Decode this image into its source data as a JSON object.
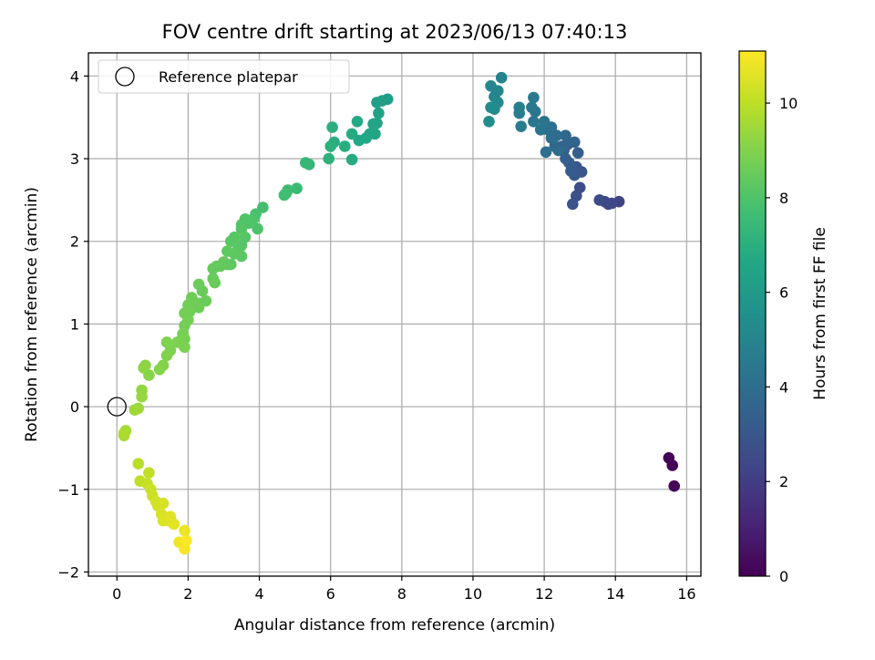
{
  "chart_data": {
    "type": "scatter",
    "title": "FOV centre drift starting at 2023/06/13 07:40:13",
    "xlabel": "Angular distance from reference (arcmin)",
    "ylabel": "Rotation from reference (arcmin)",
    "xlim": [
      -0.8,
      16.4
    ],
    "ylim": [
      -2.05,
      4.28
    ],
    "xticks": [
      0,
      2,
      4,
      6,
      8,
      10,
      12,
      14,
      16
    ],
    "yticks": [
      -2,
      -1,
      0,
      1,
      2,
      3,
      4
    ],
    "grid": true,
    "legend": {
      "position": "top-left",
      "entries": [
        "Reference platepar"
      ]
    },
    "reference_point": {
      "x": 0,
      "y": 0
    },
    "colorbar": {
      "label": "Hours from first FF file",
      "colormap": "viridis",
      "range": [
        0,
        11.1
      ],
      "ticks": [
        0,
        2,
        4,
        6,
        8,
        10
      ]
    },
    "points": [
      [
        15.5,
        -0.62,
        0.05
      ],
      [
        15.6,
        -0.71,
        0.1
      ],
      [
        15.65,
        -0.96,
        0.15
      ],
      [
        14.1,
        2.48,
        2.2
      ],
      [
        13.8,
        2.45,
        2.3
      ],
      [
        13.9,
        2.46,
        2.35
      ],
      [
        13.7,
        2.48,
        2.4
      ],
      [
        13.55,
        2.5,
        2.5
      ],
      [
        13.0,
        2.65,
        2.6
      ],
      [
        12.9,
        2.55,
        2.7
      ],
      [
        12.8,
        2.45,
        2.8
      ],
      [
        13.05,
        2.84,
        2.9
      ],
      [
        12.9,
        2.9,
        3.0
      ],
      [
        12.85,
        2.8,
        3.1
      ],
      [
        12.75,
        2.85,
        3.15
      ],
      [
        12.7,
        2.95,
        3.2
      ],
      [
        12.95,
        3.07,
        3.3
      ],
      [
        12.6,
        3.0,
        3.35
      ],
      [
        12.55,
        3.1,
        3.4
      ],
      [
        12.85,
        3.2,
        3.5
      ],
      [
        12.65,
        3.17,
        3.55
      ],
      [
        12.5,
        3.15,
        3.6
      ],
      [
        12.6,
        3.28,
        3.7
      ],
      [
        12.3,
        3.15,
        3.75
      ],
      [
        12.4,
        3.1,
        3.8
      ],
      [
        12.35,
        3.28,
        3.9
      ],
      [
        12.2,
        3.25,
        3.95
      ],
      [
        12.05,
        3.08,
        4.0
      ],
      [
        12.2,
        3.38,
        4.05
      ],
      [
        12.1,
        3.35,
        4.1
      ],
      [
        12.0,
        3.45,
        4.2
      ],
      [
        11.9,
        3.35,
        4.25
      ],
      [
        11.7,
        3.45,
        4.3
      ],
      [
        11.75,
        3.57,
        4.35
      ],
      [
        11.65,
        3.62,
        4.4
      ],
      [
        11.7,
        3.74,
        4.5
      ],
      [
        11.35,
        3.39,
        4.6
      ],
      [
        11.3,
        3.55,
        4.7
      ],
      [
        11.3,
        3.62,
        4.75
      ],
      [
        10.8,
        3.98,
        4.9
      ],
      [
        10.7,
        3.82,
        5.0
      ],
      [
        10.6,
        3.75,
        5.05
      ],
      [
        10.5,
        3.88,
        5.1
      ],
      [
        10.7,
        3.68,
        5.2
      ],
      [
        10.6,
        3.6,
        5.25
      ],
      [
        10.5,
        3.62,
        5.3
      ],
      [
        10.45,
        3.45,
        5.35
      ],
      [
        7.6,
        3.72,
        6.1
      ],
      [
        7.45,
        3.7,
        6.2
      ],
      [
        7.3,
        3.68,
        6.25
      ],
      [
        7.35,
        3.55,
        6.3
      ],
      [
        7.3,
        3.43,
        6.4
      ],
      [
        7.2,
        3.42,
        6.45
      ],
      [
        7.25,
        3.3,
        6.5
      ],
      [
        7.1,
        3.3,
        6.55
      ],
      [
        7.0,
        3.25,
        6.6
      ],
      [
        6.8,
        3.22,
        6.65
      ],
      [
        6.75,
        3.45,
        6.7
      ],
      [
        6.6,
        3.3,
        6.75
      ],
      [
        6.6,
        2.99,
        6.8
      ],
      [
        6.4,
        3.15,
        6.9
      ],
      [
        6.1,
        3.2,
        6.95
      ],
      [
        6.05,
        3.38,
        7.0
      ],
      [
        6.0,
        3.15,
        7.05
      ],
      [
        5.95,
        3.0,
        7.1
      ],
      [
        5.4,
        2.93,
        7.3
      ],
      [
        5.3,
        2.95,
        7.35
      ],
      [
        5.05,
        2.64,
        7.5
      ],
      [
        4.8,
        2.62,
        7.55
      ],
      [
        4.75,
        2.58,
        7.6
      ],
      [
        4.7,
        2.56,
        7.65
      ],
      [
        4.1,
        2.41,
        7.8
      ],
      [
        3.9,
        2.33,
        7.85
      ],
      [
        3.85,
        2.28,
        7.9
      ],
      [
        3.95,
        2.15,
        7.95
      ],
      [
        3.8,
        2.25,
        8.0
      ],
      [
        3.7,
        2.22,
        8.02
      ],
      [
        3.6,
        2.27,
        8.05
      ],
      [
        3.5,
        2.2,
        8.08
      ],
      [
        3.5,
        2.15,
        8.1
      ],
      [
        3.6,
        2.05,
        8.12
      ],
      [
        3.5,
        1.95,
        8.15
      ],
      [
        3.3,
        2.05,
        8.18
      ],
      [
        3.2,
        2.0,
        8.2
      ],
      [
        3.4,
        1.9,
        8.22
      ],
      [
        3.5,
        1.82,
        8.25
      ],
      [
        3.3,
        1.85,
        8.28
      ],
      [
        3.1,
        1.88,
        8.3
      ],
      [
        3.2,
        1.72,
        8.32
      ],
      [
        3.1,
        1.72,
        8.35
      ],
      [
        2.9,
        1.7,
        8.38
      ],
      [
        3.0,
        1.75,
        8.4
      ],
      [
        2.8,
        1.7,
        8.42
      ],
      [
        2.7,
        1.67,
        8.45
      ],
      [
        2.75,
        1.5,
        8.48
      ],
      [
        2.7,
        1.55,
        8.5
      ],
      [
        2.4,
        1.4,
        8.52
      ],
      [
        2.3,
        1.48,
        8.55
      ],
      [
        2.5,
        1.28,
        8.58
      ],
      [
        2.3,
        1.25,
        8.6
      ],
      [
        2.3,
        1.2,
        8.62
      ],
      [
        2.1,
        1.32,
        8.65
      ],
      [
        2.0,
        1.23,
        8.68
      ],
      [
        2.05,
        1.15,
        8.7
      ],
      [
        1.9,
        1.13,
        8.72
      ],
      [
        2.0,
        1.05,
        8.75
      ],
      [
        1.9,
        0.98,
        8.78
      ],
      [
        1.85,
        0.88,
        8.8
      ],
      [
        1.9,
        0.82,
        8.82
      ],
      [
        1.8,
        0.8,
        8.85
      ],
      [
        1.9,
        0.72,
        8.88
      ],
      [
        1.7,
        0.78,
        8.9
      ],
      [
        1.5,
        0.68,
        8.92
      ],
      [
        1.4,
        0.78,
        8.95
      ],
      [
        1.4,
        0.62,
        8.98
      ],
      [
        1.3,
        0.5,
        9.0
      ],
      [
        1.2,
        0.45,
        9.05
      ],
      [
        0.9,
        0.38,
        9.1
      ],
      [
        0.8,
        0.5,
        9.15
      ],
      [
        0.75,
        0.47,
        9.2
      ],
      [
        0.7,
        0.2,
        9.3
      ],
      [
        0.7,
        0.12,
        9.35
      ],
      [
        0.6,
        -0.02,
        9.45
      ],
      [
        0.5,
        -0.04,
        9.5
      ],
      [
        0.25,
        -0.29,
        9.6
      ],
      [
        0.2,
        -0.35,
        9.65
      ],
      [
        0.2,
        -0.32,
        9.7
      ],
      [
        0.6,
        -0.69,
        9.9
      ],
      [
        0.65,
        -0.9,
        10.0
      ],
      [
        0.9,
        -0.8,
        10.05
      ],
      [
        0.85,
        -0.93,
        10.1
      ],
      [
        0.95,
        -1.0,
        10.2
      ],
      [
        1.0,
        -1.08,
        10.25
      ],
      [
        1.1,
        -1.15,
        10.3
      ],
      [
        1.15,
        -1.2,
        10.35
      ],
      [
        1.3,
        -1.17,
        10.4
      ],
      [
        1.25,
        -1.3,
        10.45
      ],
      [
        1.3,
        -1.38,
        10.5
      ],
      [
        1.45,
        -1.38,
        10.55
      ],
      [
        1.5,
        -1.33,
        10.6
      ],
      [
        1.6,
        -1.42,
        10.65
      ],
      [
        1.9,
        -1.5,
        10.8
      ],
      [
        1.75,
        -1.64,
        10.85
      ],
      [
        1.85,
        -1.65,
        10.9
      ],
      [
        1.9,
        -1.72,
        11.0
      ],
      [
        1.95,
        -1.62,
        11.05
      ]
    ]
  }
}
